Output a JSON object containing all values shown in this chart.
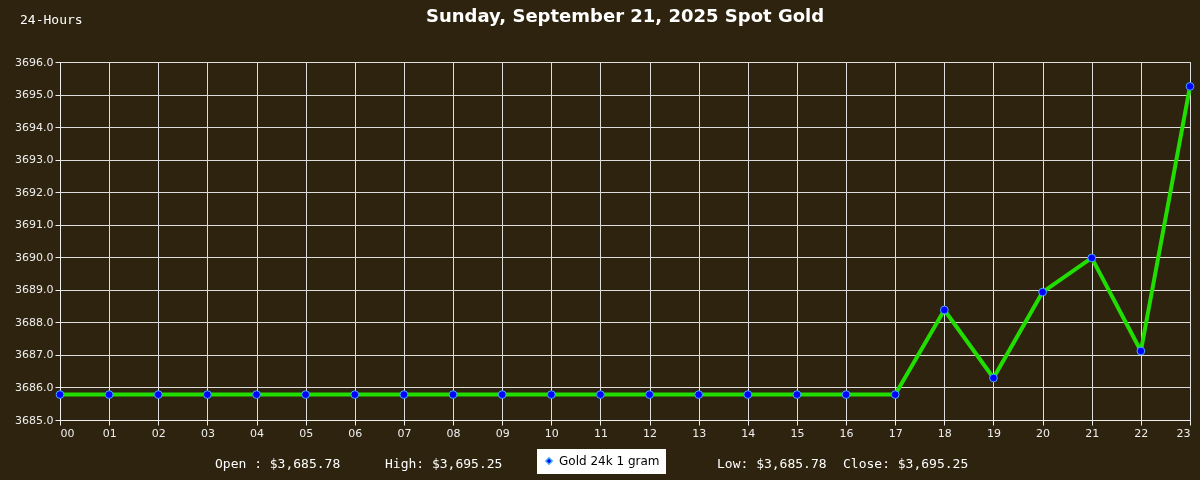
{
  "chart_data": {
    "type": "line",
    "title": "Sunday, September 21, 2025 Spot Gold",
    "annotations": [
      "24-Hours",
      "Open : $3,685.78",
      "High: $3,695.25",
      "Low: $3,685.78",
      "Close: $3,695.25"
    ],
    "x": [
      0,
      1,
      2,
      3,
      4,
      5,
      6,
      7,
      8,
      9,
      10,
      11,
      12,
      13,
      14,
      15,
      16,
      17,
      18,
      19,
      20,
      21,
      22,
      23
    ],
    "series": [
      {
        "name": "Gold 24k 1 gram",
        "color": "#0000ff",
        "values": [
          3685.78,
          3685.78,
          3685.78,
          3685.78,
          3685.78,
          3685.78,
          3685.78,
          3685.78,
          3685.78,
          3685.78,
          3685.78,
          3685.78,
          3685.78,
          3685.78,
          3685.78,
          3685.78,
          3685.78,
          3685.78,
          3688.38,
          3686.29,
          3688.93,
          3689.98,
          3687.12,
          3695.25
        ]
      }
    ],
    "xlim": [
      0,
      23
    ],
    "xticks": [
      {
        "value": 0,
        "label": "00"
      },
      {
        "value": 1,
        "label": "01"
      },
      {
        "value": 2,
        "label": "02"
      },
      {
        "value": 3,
        "label": "03"
      },
      {
        "value": 4,
        "label": "04"
      },
      {
        "value": 5,
        "label": "05"
      },
      {
        "value": 6,
        "label": "06"
      },
      {
        "value": 7,
        "label": "07"
      },
      {
        "value": 8,
        "label": "08"
      },
      {
        "value": 9,
        "label": "09"
      },
      {
        "value": 10,
        "label": "10"
      },
      {
        "value": 11,
        "label": "11"
      },
      {
        "value": 12,
        "label": "12"
      },
      {
        "value": 13,
        "label": "13"
      },
      {
        "value": 14,
        "label": "14"
      },
      {
        "value": 15,
        "label": "15"
      },
      {
        "value": 16,
        "label": "16"
      },
      {
        "value": 17,
        "label": "17"
      },
      {
        "value": 18,
        "label": "18"
      },
      {
        "value": 19,
        "label": "19"
      },
      {
        "value": 20,
        "label": "20"
      },
      {
        "value": 21,
        "label": "21"
      },
      {
        "value": 22,
        "label": "22"
      },
      {
        "value": 23,
        "label": "23"
      }
    ],
    "ylim": [
      3685,
      3696
    ],
    "yticks": [
      {
        "value": 3685,
        "label": "3685.0"
      },
      {
        "value": 3686,
        "label": "3686.0"
      },
      {
        "value": 3687,
        "label": "3687.0"
      },
      {
        "value": 3688,
        "label": "3688.0"
      },
      {
        "value": 3689,
        "label": "3689.0"
      },
      {
        "value": 3690,
        "label": "3690.0"
      },
      {
        "value": 3691,
        "label": "3691.0"
      },
      {
        "value": 3692,
        "label": "3692.0"
      },
      {
        "value": 3693,
        "label": "3693.0"
      },
      {
        "value": 3694,
        "label": "3694.0"
      },
      {
        "value": 3695,
        "label": "3695.0"
      },
      {
        "value": 3696,
        "label": "3696.0"
      }
    ],
    "grid": true,
    "legend": "bottom",
    "marker": "circle",
    "line_style": "solid"
  }
}
